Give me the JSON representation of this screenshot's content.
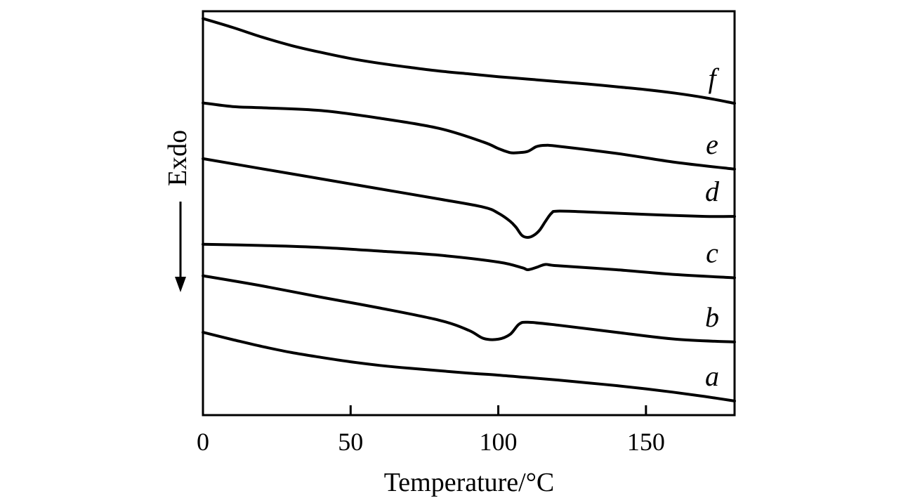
{
  "chart_data": {
    "type": "line",
    "title": "",
    "xlabel": "Temperature/°C",
    "ylabel": "Exdo",
    "xlim": [
      0,
      180
    ],
    "ylim": [
      0,
      100
    ],
    "x_ticks": [
      0,
      50,
      100,
      150
    ],
    "x_tick_labels": [
      "0",
      "50",
      "100",
      "150"
    ],
    "y_ticks_shown": false,
    "grid": false,
    "legend": "none",
    "series": [
      {
        "name": "a",
        "x": [
          0,
          10,
          20,
          30,
          40,
          50,
          60,
          70,
          80,
          90,
          100,
          110,
          120,
          130,
          140,
          150,
          160,
          170,
          180
        ],
        "y": [
          20.5,
          18.7,
          17.0,
          15.5,
          14.3,
          13.2,
          12.3,
          11.6,
          11.0,
          10.4,
          9.9,
          9.3,
          8.7,
          8.0,
          7.3,
          6.5,
          5.6,
          4.6,
          3.5
        ]
      },
      {
        "name": "b",
        "x": [
          0,
          20,
          40,
          60,
          80,
          90,
          95,
          100,
          104,
          107,
          110,
          120,
          140,
          160,
          180
        ],
        "y": [
          34.5,
          32.0,
          29.2,
          26.5,
          23.5,
          21.0,
          19.0,
          18.8,
          20.0,
          22.5,
          23.0,
          22.3,
          20.5,
          18.8,
          18.1
        ]
      },
      {
        "name": "c",
        "x": [
          0,
          20,
          40,
          60,
          80,
          100,
          108,
          110,
          113,
          116,
          120,
          140,
          160,
          180
        ],
        "y": [
          42.3,
          42.0,
          41.5,
          40.6,
          39.6,
          37.9,
          36.5,
          36.0,
          36.6,
          37.3,
          37.0,
          36.0,
          34.8,
          34.0
        ]
      },
      {
        "name": "d",
        "x": [
          0,
          20,
          40,
          60,
          80,
          95,
          100,
          104,
          106,
          108,
          110,
          112,
          114,
          116,
          118,
          120,
          130,
          150,
          170,
          180
        ],
        "y": [
          63.5,
          61.0,
          58.5,
          56.0,
          53.5,
          51.5,
          50.0,
          48.0,
          46.5,
          44.5,
          44.0,
          44.5,
          45.8,
          48.0,
          50.0,
          50.5,
          50.3,
          49.7,
          49.2,
          49.2
        ]
      },
      {
        "name": "e",
        "x": [
          0,
          10,
          20,
          40,
          60,
          80,
          95,
          100,
          104,
          107,
          110,
          113,
          116,
          120,
          140,
          160,
          180
        ],
        "y": [
          77.3,
          76.4,
          76.1,
          75.4,
          73.5,
          71.0,
          67.6,
          66.0,
          65.0,
          65.0,
          65.3,
          66.5,
          66.8,
          66.6,
          64.8,
          62.6,
          60.9
        ]
      },
      {
        "name": "f",
        "x": [
          0,
          10,
          20,
          30,
          40,
          50,
          60,
          70,
          80,
          90,
          100,
          110,
          120,
          130,
          140,
          150,
          160,
          170,
          180
        ],
        "y": [
          98.2,
          96.0,
          93.6,
          91.5,
          89.8,
          88.3,
          87.1,
          86.1,
          85.2,
          84.5,
          83.8,
          83.2,
          82.6,
          82.0,
          81.3,
          80.6,
          79.7,
          78.6,
          77.2
        ]
      }
    ],
    "curve_labels": [
      "a",
      "b",
      "c",
      "d",
      "e",
      "f"
    ],
    "colors": {
      "line": "#000000",
      "axis": "#000000",
      "background": "#ffffff"
    }
  }
}
